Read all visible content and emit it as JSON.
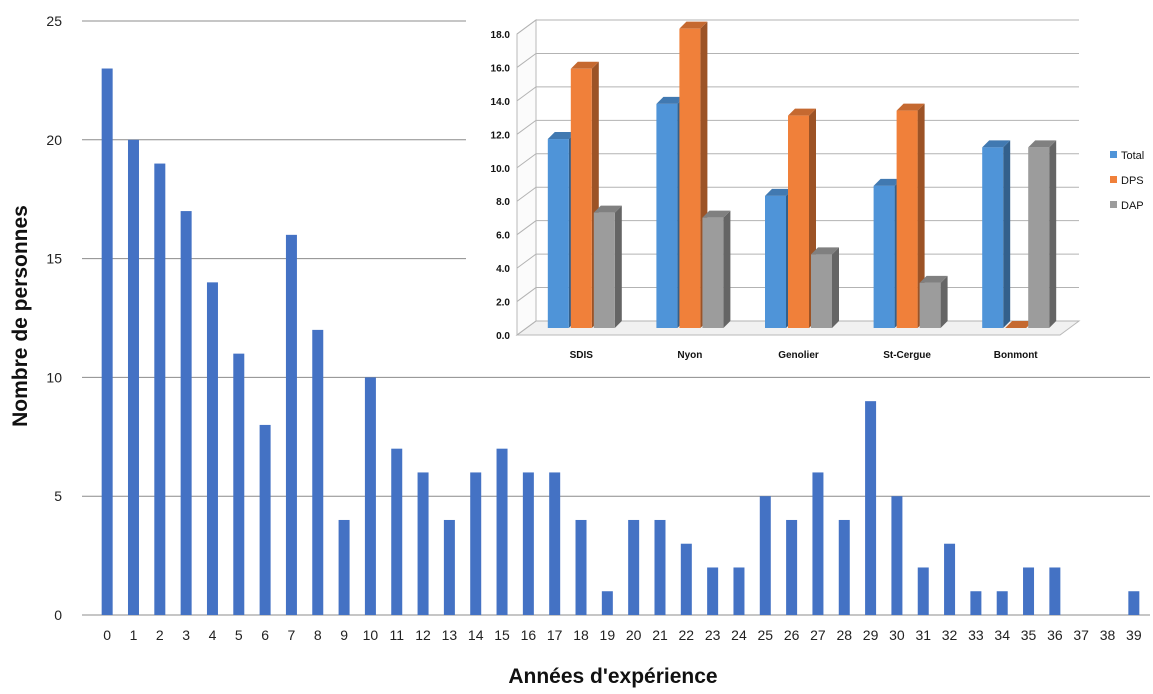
{
  "chart_data": [
    {
      "type": "bar",
      "xlabel": "Années d'expérience",
      "ylabel": "Nombre de personnes",
      "ylim": [
        0,
        25
      ],
      "yticks": [
        0,
        5,
        10,
        15,
        20,
        25
      ],
      "grid": true,
      "colors": {
        "bar": "#4472C4",
        "grid": "#8c8c8c"
      },
      "categories": [
        "0",
        "1",
        "2",
        "3",
        "4",
        "5",
        "6",
        "7",
        "8",
        "9",
        "10",
        "11",
        "12",
        "13",
        "14",
        "15",
        "16",
        "17",
        "18",
        "19",
        "20",
        "21",
        "22",
        "23",
        "24",
        "25",
        "26",
        "27",
        "28",
        "29",
        "30",
        "31",
        "32",
        "33",
        "34",
        "35",
        "36",
        "37",
        "38",
        "39"
      ],
      "values": [
        23,
        20,
        19,
        17,
        14,
        11,
        8,
        16,
        12,
        4,
        10,
        7,
        6,
        4,
        6,
        7,
        6,
        6,
        4,
        1,
        4,
        4,
        3,
        2,
        2,
        5,
        4,
        6,
        4,
        9,
        5,
        2,
        3,
        1,
        1,
        2,
        2,
        0,
        0,
        1
      ]
    },
    {
      "type": "bar",
      "style": "3d-clustered",
      "ylim": [
        0,
        18
      ],
      "yticks": [
        "0.0",
        "2.0",
        "4.0",
        "6.0",
        "8.0",
        "10.0",
        "12.0",
        "14.0",
        "16.0",
        "18.0"
      ],
      "grid": true,
      "legend_position": "right",
      "categories": [
        "SDIS",
        "Nyon",
        "Genolier",
        "St-Cergue",
        "Bonmont"
      ],
      "series": [
        {
          "name": "Total",
          "color": "#4F94D8",
          "values": [
            11.3,
            13.4,
            7.9,
            8.5,
            10.8
          ]
        },
        {
          "name": "DPS",
          "color": "#F0803A",
          "values": [
            15.5,
            17.9,
            12.7,
            13.0,
            0.0
          ]
        },
        {
          "name": "DAP",
          "color": "#9C9C9C",
          "values": [
            6.9,
            6.6,
            4.4,
            2.7,
            10.8
          ]
        }
      ]
    }
  ]
}
